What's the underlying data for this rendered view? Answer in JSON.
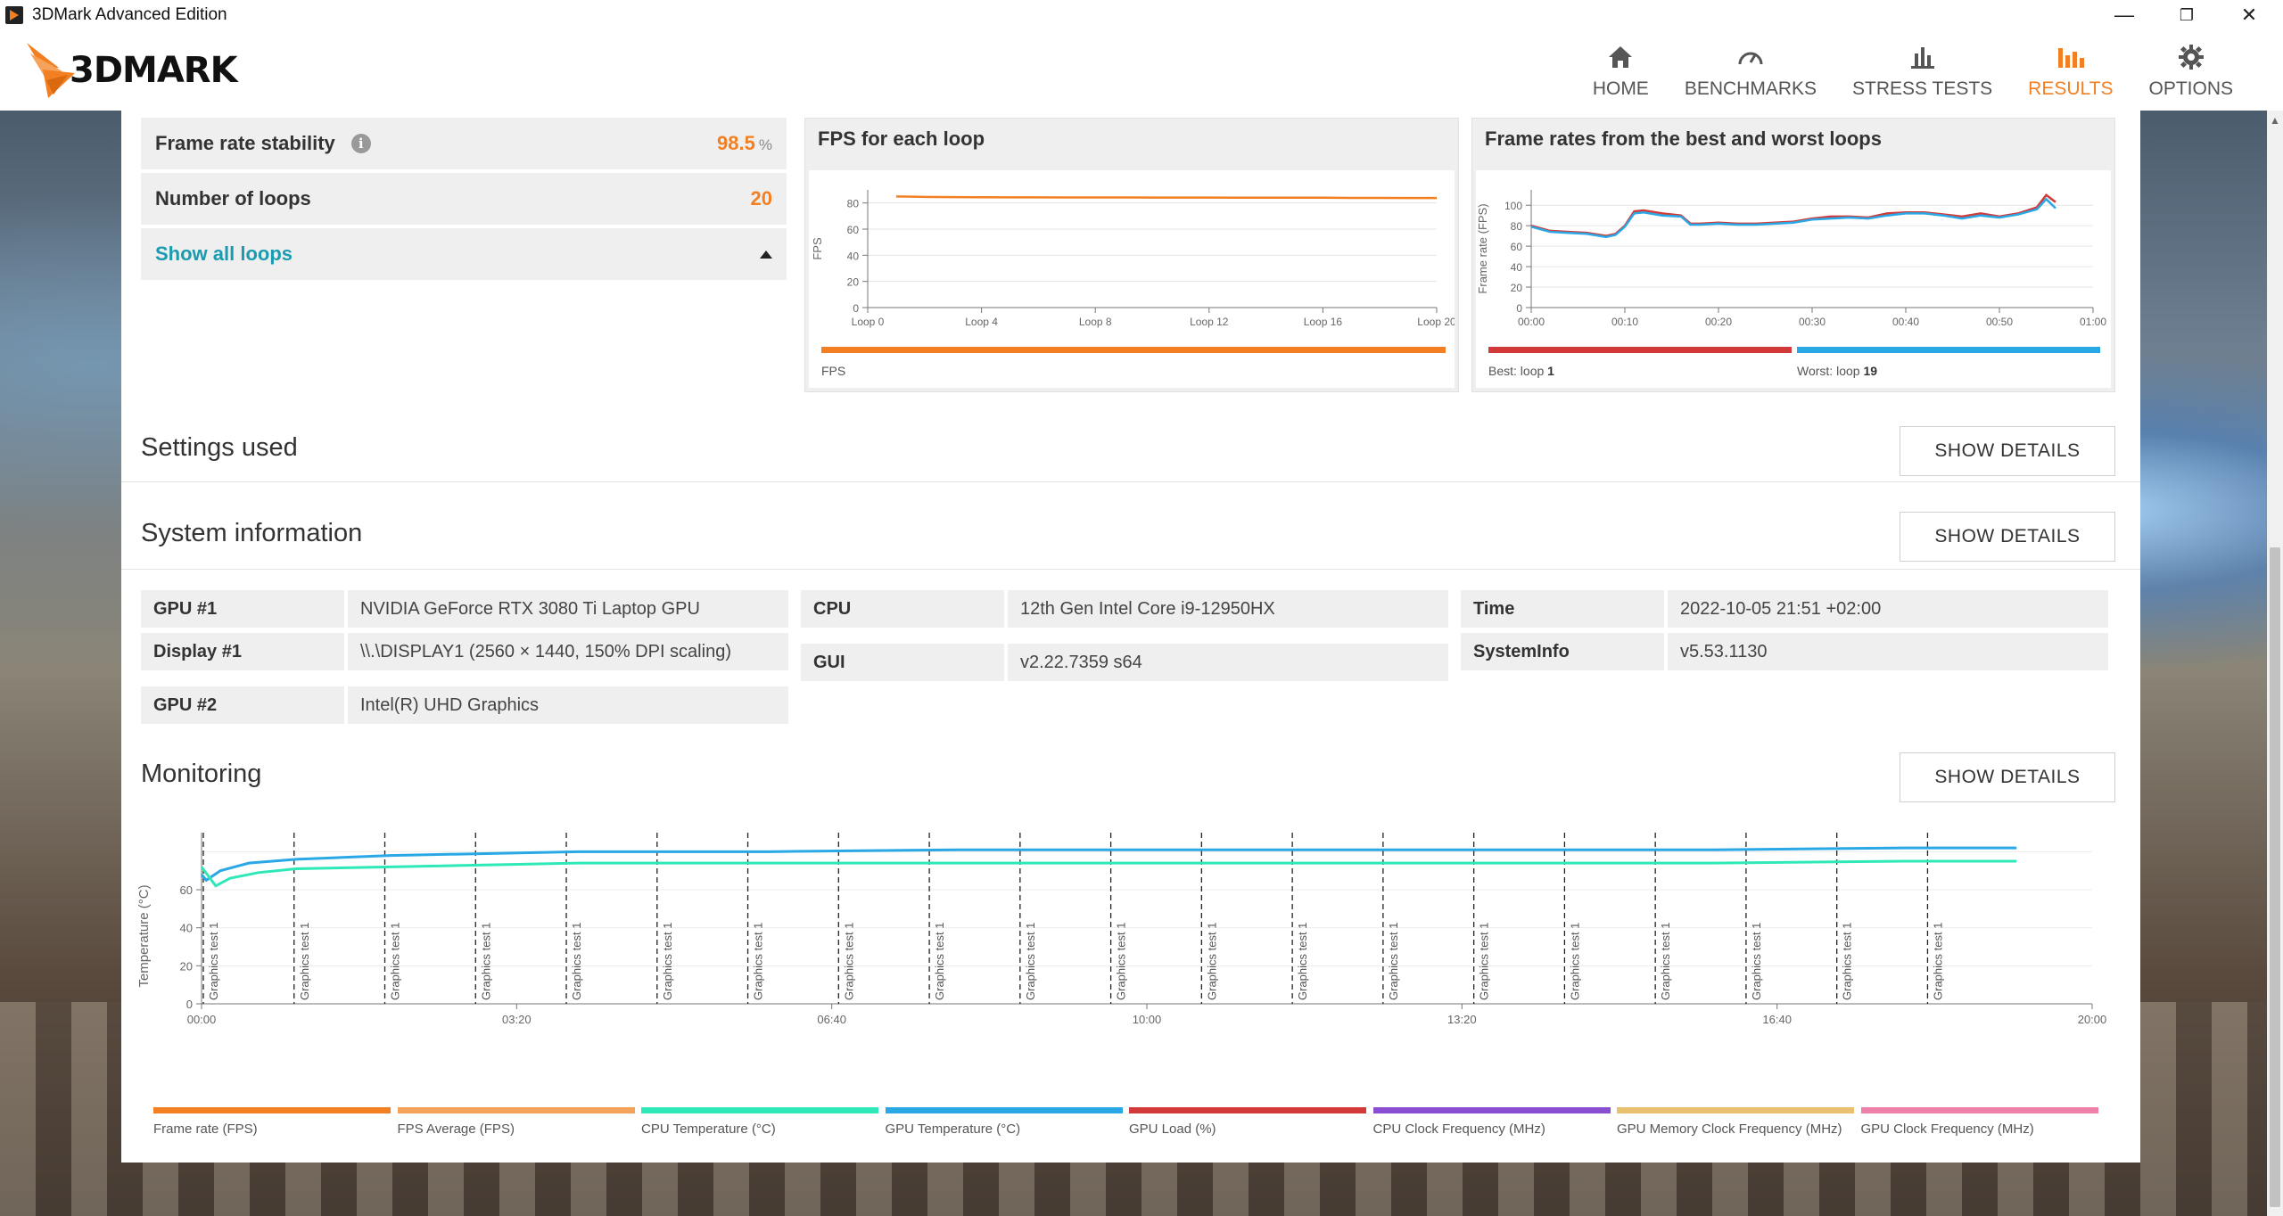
{
  "window": {
    "title": "3DMark Advanced Edition",
    "minimize": "—",
    "maximize": "❐",
    "close": "✕"
  },
  "brand": {
    "logo_text": "3DMARK"
  },
  "nav": {
    "items": [
      {
        "label": "HOME",
        "icon": "home-icon"
      },
      {
        "label": "BENCHMARKS",
        "icon": "gauge-icon"
      },
      {
        "label": "STRESS TESTS",
        "icon": "bar-chart-icon"
      },
      {
        "label": "RESULTS",
        "icon": "results-icon",
        "active": true
      },
      {
        "label": "OPTIONS",
        "icon": "gear-icon"
      }
    ]
  },
  "stats": {
    "frame_rate_stability": {
      "label": "Frame rate stability",
      "value": "98.5",
      "unit": "%"
    },
    "number_of_loops": {
      "label": "Number of loops",
      "value": "20"
    },
    "show_all_loops": "Show all loops"
  },
  "colors": {
    "accent": "#f28022",
    "link": "#1a9bb0",
    "best": "#d23a3a",
    "worst": "#2aa8e6"
  },
  "chart_data": [
    {
      "type": "line",
      "title": "FPS for each loop",
      "ylabel": "FPS",
      "ylim": [
        0,
        90
      ],
      "yticks": [
        0,
        20,
        40,
        60,
        80
      ],
      "xticks": [
        "Loop 0",
        "Loop 4",
        "Loop 8",
        "Loop 12",
        "Loop 16",
        "Loop 20"
      ],
      "x": [
        1,
        2,
        3,
        4,
        5,
        6,
        7,
        8,
        9,
        10,
        11,
        12,
        13,
        14,
        15,
        16,
        17,
        18,
        19,
        20
      ],
      "series": [
        {
          "name": "FPS",
          "color": "#f28022",
          "values": [
            85.0,
            84.6,
            84.5,
            84.4,
            84.3,
            84.3,
            84.2,
            84.2,
            84.2,
            84.1,
            84.1,
            84.1,
            84.0,
            84.0,
            84.0,
            84.0,
            83.9,
            83.9,
            83.8,
            83.8
          ]
        }
      ],
      "legend": [
        {
          "text": "FPS",
          "color": "#f28022"
        }
      ]
    },
    {
      "type": "line",
      "title": "Frame rates from the best and worst loops",
      "ylabel": "Frame rate (FPS)",
      "ylim": [
        0,
        115
      ],
      "yticks": [
        0,
        20,
        40,
        60,
        80,
        100
      ],
      "xticks": [
        "00:00",
        "00:10",
        "00:20",
        "00:30",
        "00:40",
        "00:50",
        "01:00"
      ],
      "x": [
        0,
        2,
        4,
        6,
        8,
        9,
        10,
        11,
        12,
        14,
        16,
        17,
        18,
        20,
        22,
        24,
        26,
        28,
        30,
        32,
        34,
        36,
        38,
        40,
        42,
        44,
        46,
        48,
        50,
        52,
        54,
        55,
        56
      ],
      "series": [
        {
          "name": "Best",
          "color": "#d23a3a",
          "values": [
            80,
            75,
            74,
            73,
            70,
            72,
            80,
            94,
            95,
            92,
            90,
            82,
            82,
            83,
            82,
            82,
            83,
            84,
            87,
            89,
            89,
            88,
            92,
            93,
            93,
            91,
            89,
            92,
            89,
            92,
            98,
            110,
            103
          ]
        },
        {
          "name": "Worst",
          "color": "#2aa8e6",
          "values": [
            79,
            74,
            73,
            72,
            69,
            71,
            79,
            92,
            93,
            90,
            89,
            81,
            81,
            82,
            81,
            81,
            82,
            83,
            86,
            87,
            88,
            87,
            90,
            92,
            92,
            90,
            87,
            90,
            88,
            91,
            96,
            106,
            97
          ]
        }
      ],
      "legend": [
        {
          "text": "Best: loop",
          "value": "1",
          "color": "#d23a3a"
        },
        {
          "text": "Worst: loop",
          "value": "19",
          "color": "#2aa8e6"
        }
      ]
    },
    {
      "type": "line",
      "ylabel": "Temperature (°C)",
      "ylim": [
        0,
        90
      ],
      "yticks": [
        0,
        20,
        40,
        60
      ],
      "xticks": [
        "00:00",
        "03:20",
        "06:40",
        "10:00",
        "13:20",
        "16:40",
        "20:00"
      ],
      "xlim_minutes": [
        0,
        20
      ],
      "marker_label": "Graphics test 1",
      "markers_minutes": [
        0,
        0.96,
        1.92,
        2.88,
        3.84,
        4.8,
        5.76,
        6.72,
        7.68,
        8.64,
        9.6,
        10.56,
        11.52,
        12.48,
        13.44,
        14.4,
        15.36,
        16.32,
        17.28,
        18.24
      ],
      "series": [
        {
          "name": "GPU Temperature (°C)",
          "color": "#2aa8e6",
          "x": [
            0,
            0.05,
            0.2,
            0.5,
            1,
            2,
            3,
            4,
            5,
            6,
            8,
            10,
            12,
            14,
            16,
            18,
            19.2
          ],
          "values": [
            68,
            65,
            70,
            74,
            76,
            78,
            79,
            80,
            80,
            80,
            81,
            81,
            81,
            81,
            81,
            82,
            82
          ]
        },
        {
          "name": "CPU Temperature (°C)",
          "color": "#2ee8b8",
          "x": [
            0,
            0.15,
            0.3,
            0.6,
            1,
            2,
            3,
            4,
            5,
            6,
            8,
            10,
            12,
            14,
            16,
            18,
            19.2
          ],
          "values": [
            72,
            62,
            66,
            69,
            71,
            72,
            73,
            74,
            74,
            74,
            74,
            74,
            74,
            74,
            74,
            75,
            75
          ]
        }
      ],
      "legend": [
        {
          "text": "Frame rate (FPS)",
          "color": "#f28022"
        },
        {
          "text": "FPS Average (FPS)",
          "color": "#f5a35a"
        },
        {
          "text": "CPU Temperature (°C)",
          "color": "#2ee8b8"
        },
        {
          "text": "GPU Temperature (°C)",
          "color": "#2aa8e6"
        },
        {
          "text": "GPU Load (%)",
          "color": "#d23a3a"
        },
        {
          "text": "CPU Clock Frequency (MHz)",
          "color": "#8a4fd0"
        },
        {
          "text": "GPU Memory Clock Frequency (MHz)",
          "color": "#e8c070"
        },
        {
          "text": "GPU Clock Frequency (MHz)",
          "color": "#ee7fa8"
        }
      ]
    }
  ],
  "sections": {
    "settings": {
      "title": "Settings used",
      "button": "SHOW DETAILS"
    },
    "system": {
      "title": "System information",
      "button": "SHOW DETAILS"
    },
    "monitoring": {
      "title": "Monitoring",
      "button": "SHOW DETAILS"
    }
  },
  "system_info": {
    "gpu1": {
      "label": "GPU #1",
      "value": "NVIDIA GeForce RTX 3080 Ti Laptop GPU"
    },
    "display1": {
      "label": "Display #1",
      "value": "\\\\.\\DISPLAY1 (2560 × 1440, 150% DPI scaling)"
    },
    "gpu2": {
      "label": "GPU #2",
      "value": "Intel(R) UHD Graphics"
    },
    "cpu": {
      "label": "CPU",
      "value": "12th Gen Intel Core i9-12950HX"
    },
    "gui": {
      "label": "GUI",
      "value": "v2.22.7359 s64"
    },
    "time": {
      "label": "Time",
      "value": "2022-10-05 21:51 +02:00"
    },
    "systeminfo": {
      "label": "SystemInfo",
      "value": "v5.53.1130"
    }
  }
}
